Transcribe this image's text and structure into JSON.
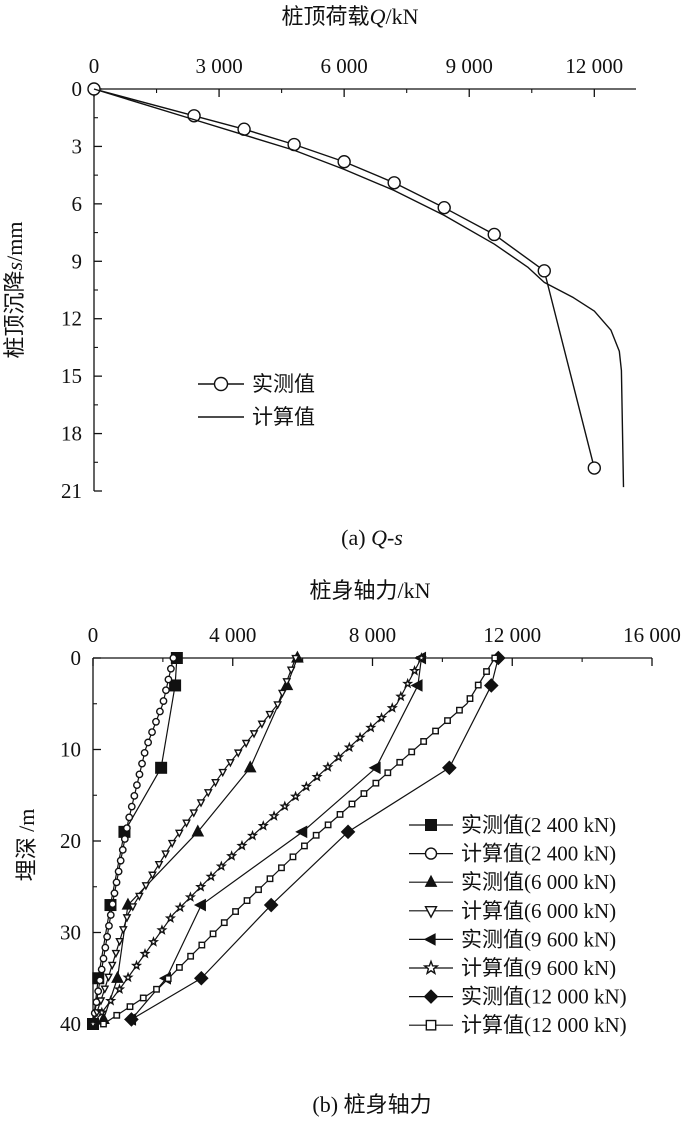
{
  "chart_data": [
    {
      "type": "line",
      "caption_prefix": "(a) ",
      "caption_italic": "Q-s",
      "xlabel_prefix": "桩顶荷载",
      "xlabel_italic": "Q",
      "xlabel_suffix": "/kN",
      "ylabel_prefix": "桩顶沉降",
      "ylabel_italic": "s",
      "ylabel_suffix": "/mm",
      "xlim": [
        0,
        13000
      ],
      "ylim": [
        0,
        21
      ],
      "y_inverted": true,
      "x_axis_position": "top",
      "xticks": [
        0,
        3000,
        6000,
        9000,
        12000
      ],
      "xtick_labels": [
        "0",
        "3 000",
        "6 000",
        "9 000",
        "12 000"
      ],
      "yticks": [
        0,
        3,
        6,
        9,
        12,
        15,
        18,
        21
      ],
      "ytick_labels": [
        "0",
        "3",
        "6",
        "9",
        "12",
        "15",
        "18",
        "21"
      ],
      "legend_position": "lower-left",
      "series": [
        {
          "name": "实测值",
          "marker": "open-circle",
          "x": [
            0,
            2400,
            3600,
            4800,
            6000,
            7200,
            8400,
            9600,
            10800,
            12000
          ],
          "y": [
            0,
            1.4,
            2.1,
            2.9,
            3.8,
            4.9,
            6.2,
            7.6,
            9.5,
            19.8
          ]
        },
        {
          "name": "计算值",
          "marker": "none",
          "x": [
            0,
            2400,
            3600,
            4800,
            6000,
            7200,
            8400,
            9600,
            10400,
            10800,
            11500,
            12000,
            12400,
            12600,
            12650,
            12700
          ],
          "y": [
            0,
            1.6,
            2.4,
            3.2,
            4.2,
            5.3,
            6.6,
            8.1,
            9.3,
            10.1,
            10.9,
            11.6,
            12.6,
            13.7,
            14.7,
            20.8
          ]
        }
      ]
    },
    {
      "type": "line",
      "caption": "(b) 桩身轴力",
      "xlabel": "桩身轴力/kN",
      "ylabel": "埋深 /m",
      "xlim": [
        0,
        16000
      ],
      "ylim": [
        0,
        40
      ],
      "y_inverted": true,
      "x_axis_position": "top",
      "xticks": [
        0,
        4000,
        8000,
        12000,
        16000
      ],
      "xtick_labels": [
        "0",
        "4 000",
        "8 000",
        "12 000",
        "16 000"
      ],
      "yticks": [
        0,
        10,
        20,
        30,
        40
      ],
      "ytick_labels": [
        "0",
        "10",
        "20",
        "30",
        "40"
      ],
      "legend_position": "right",
      "series": [
        {
          "name": "实测值(2 400 kN)",
          "marker": "filled-square",
          "x": [
            2400,
            2350,
            1950,
            900,
            500,
            150,
            0
          ],
          "y": [
            0,
            3,
            12,
            19,
            27,
            35,
            40
          ]
        },
        {
          "name": "计算值(2 400 kN)",
          "marker": "open-circle",
          "x": [
            2300,
            2000,
            1500,
            1000,
            600,
            250,
            0
          ],
          "y": [
            0,
            5,
            10,
            18,
            26,
            34,
            40
          ]
        },
        {
          "name": "实测值(6 000 kN)",
          "marker": "filled-triangle",
          "x": [
            5850,
            5550,
            4500,
            3000,
            1000,
            700,
            300
          ],
          "y": [
            0,
            3,
            12,
            19,
            27,
            35,
            39.5
          ]
        },
        {
          "name": "计算值(6 000 kN)",
          "marker": "open-triangle-down",
          "x": [
            5800,
            5300,
            3800,
            2300,
            1000,
            350,
            0
          ],
          "y": [
            0,
            5,
            12,
            20,
            28,
            36,
            40
          ]
        },
        {
          "name": "实测值(9 600 kN)",
          "marker": "filled-triangle-left",
          "x": [
            9400,
            9300,
            8100,
            6000,
            3100,
            2100,
            1100
          ],
          "y": [
            0,
            3,
            12,
            19,
            27,
            35,
            39.5
          ]
        },
        {
          "name": "计算值(9 600 kN)",
          "marker": "open-star",
          "x": [
            9400,
            8700,
            6700,
            4400,
            2300,
            800,
            0
          ],
          "y": [
            0,
            5,
            12,
            20,
            28,
            36,
            40
          ]
        },
        {
          "name": "实测值(12 000 kN)",
          "marker": "filled-diamond",
          "x": [
            11600,
            11400,
            10200,
            7300,
            5100,
            3100,
            1100
          ],
          "y": [
            0,
            3,
            12,
            19,
            27,
            35,
            39.5
          ]
        },
        {
          "name": "计算值(12 000 kN)",
          "marker": "open-square",
          "x": [
            11500,
            10700,
            8600,
            6200,
            4000,
            1900,
            300
          ],
          "y": [
            0,
            5,
            12,
            20,
            28,
            36,
            40
          ]
        }
      ]
    }
  ]
}
